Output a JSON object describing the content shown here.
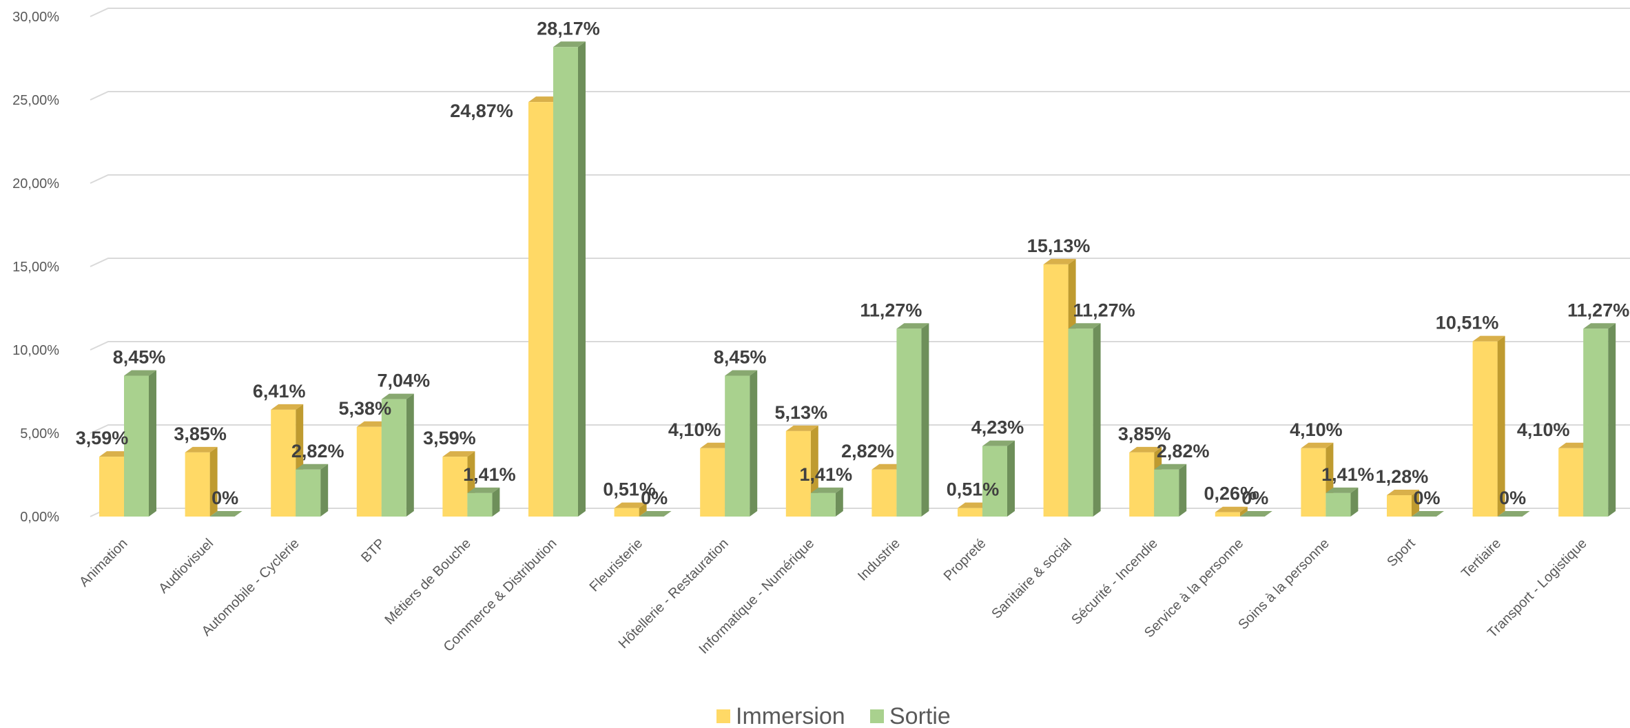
{
  "chart_data": {
    "type": "bar",
    "title": "",
    "xlabel": "",
    "ylabel": "",
    "ylim": [
      0,
      30
    ],
    "yticks": [
      "0,00%",
      "5,00%",
      "10,00%",
      "15,00%",
      "20,00%",
      "25,00%",
      "30,00%"
    ],
    "grid": true,
    "legend_position": "bottom",
    "categories": [
      "Animation",
      "Audiovisuel",
      "Automobile - Cyclerie",
      "BTP",
      "Métiers de Bouche",
      "Commerce & Distribution",
      "Fleuristerie",
      "Hôtellerie - Restauration",
      "Informatique - Numérique",
      "Industrie",
      "Propreté",
      "Sanitaire & social",
      "Sécurité - Incendie",
      "Service à la personne",
      "Soins à la personne",
      "Sport",
      "Tertiaire",
      "Transport - Logistique"
    ],
    "series": [
      {
        "name": "Immersion",
        "color": "#FFD966",
        "values": [
          3.59,
          3.85,
          6.41,
          5.38,
          3.59,
          24.87,
          0.51,
          4.1,
          5.13,
          2.82,
          0.51,
          15.13,
          3.85,
          0.26,
          4.1,
          1.28,
          10.51,
          4.1
        ],
        "labels": [
          "3,59%",
          "3,85%",
          "6,41%",
          "5,38%",
          "3,59%",
          "24,87%",
          "0,51%",
          "4,10%",
          "5,13%",
          "2,82%",
          "0,51%",
          "15,13%",
          "3,85%",
          "0,26%",
          "4,10%",
          "1,28%",
          "10,51%",
          "4,10%"
        ]
      },
      {
        "name": "Sortie",
        "color": "#A9D18E",
        "values": [
          8.45,
          0,
          2.82,
          7.04,
          1.41,
          28.17,
          0,
          8.45,
          1.41,
          11.27,
          4.23,
          11.27,
          2.82,
          0,
          1.41,
          0,
          0,
          11.27
        ],
        "labels": [
          "8,45%",
          "0%",
          "2,82%",
          "7,04%",
          "1,41%",
          "28,17%",
          "0%",
          "8,45%",
          "1,41%",
          "11,27%",
          "4,23%",
          "11,27%",
          "2,82%",
          "0%",
          "1,41%",
          "0%",
          "0%",
          "11,27%"
        ]
      }
    ]
  }
}
